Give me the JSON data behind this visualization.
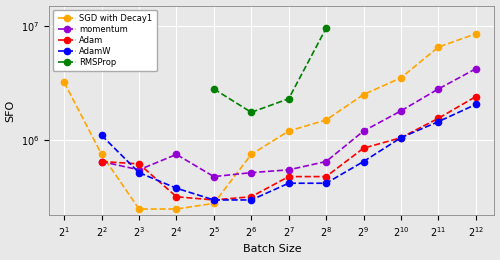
{
  "batch_sizes": [
    2,
    4,
    8,
    16,
    32,
    64,
    128,
    256,
    512,
    1024,
    2048,
    4096
  ],
  "SGD_decay1": [
    3200000.0,
    750000.0,
    250000.0,
    250000.0,
    280000.0,
    750000.0,
    1200000.0,
    1500000.0,
    2500000.0,
    3500000.0,
    6500000.0,
    8500000.0
  ],
  "momentum": [
    null,
    650000.0,
    550000.0,
    750000.0,
    480000.0,
    520000.0,
    550000.0,
    650000.0,
    1200000.0,
    1800000.0,
    2800000.0,
    4200000.0
  ],
  "Adam": [
    null,
    650000.0,
    620000.0,
    320000.0,
    300000.0,
    320000.0,
    480000.0,
    480000.0,
    850000.0,
    1050000.0,
    1550000.0,
    2400000.0
  ],
  "AdamW": [
    null,
    1100000.0,
    520000.0,
    380000.0,
    300000.0,
    300000.0,
    420000.0,
    420000.0,
    650000.0,
    1050000.0,
    1450000.0,
    2050000.0
  ],
  "RMSProp": [
    null,
    null,
    null,
    null,
    2800000.0,
    1750000.0,
    2300000.0,
    9500000.0,
    null,
    null,
    null,
    null
  ],
  "colors": {
    "SGD_decay1": "#FFA500",
    "momentum": "#9400D3",
    "Adam": "#FF0000",
    "AdamW": "#0000FF",
    "RMSProp": "#008000"
  },
  "ylabel": "SFO",
  "xlabel": "Batch Size",
  "ylim_log": [
    220000.0,
    15000000.0
  ],
  "xlim": [
    0.6,
    12.5
  ],
  "background_color": "#e8e8e8",
  "grid_color": "#ffffff",
  "legend_fontsize": 6.0,
  "tick_fontsize": 7.0,
  "label_fontsize": 8.0,
  "linewidth": 1.2,
  "markersize": 4.5
}
